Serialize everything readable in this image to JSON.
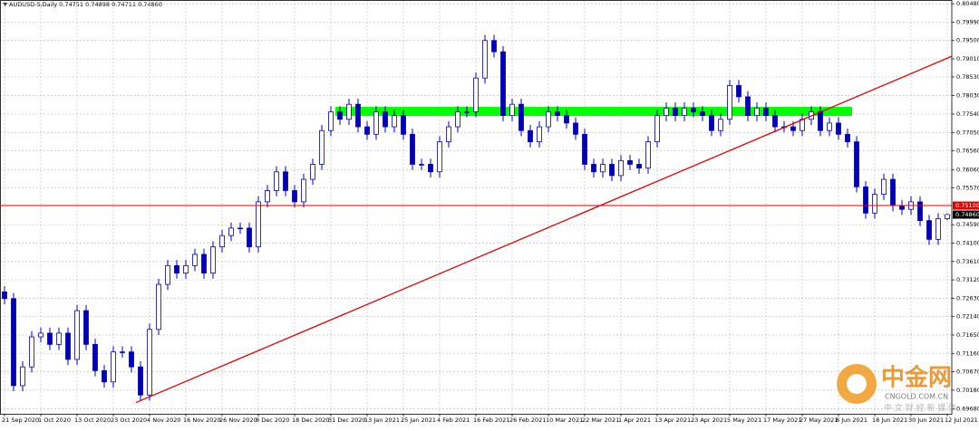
{
  "chart_data": {
    "type": "candlestick",
    "title": "AUDUSD-S,Daily",
    "header_prices": [
      "0.74751",
      "0.74898",
      "0.74711",
      "0.74860"
    ],
    "color": "#0000b4",
    "open": [
      0.728,
      0.7262,
      0.703,
      0.708,
      0.716,
      0.717,
      0.714,
      0.717,
      0.71,
      0.723,
      0.714,
      0.707,
      0.704,
      0.712,
      0.712,
      0.708,
      0.7005,
      0.718,
      0.73,
      0.735,
      0.733,
      0.735,
      0.738,
      0.733,
      0.74,
      0.743,
      0.745,
      0.745,
      0.74,
      0.752,
      0.755,
      0.76,
      0.755,
      0.752,
      0.758,
      0.762,
      0.771,
      0.776,
      0.774,
      0.778,
      0.772,
      0.77,
      0.776,
      0.772,
      0.775,
      0.77,
      0.762,
      0.762,
      0.76,
      0.768,
      0.772,
      0.776,
      0.776,
      0.785,
      0.795,
      0.792,
      0.775,
      0.778,
      0.771,
      0.768,
      0.772,
      0.776,
      0.775,
      0.773,
      0.77,
      0.762,
      0.76,
      0.762,
      0.759,
      0.763,
      0.762,
      0.761,
      0.768,
      0.775,
      0.777,
      0.775,
      0.777,
      0.776,
      0.775,
      0.771,
      0.774,
      0.783,
      0.78,
      0.775,
      0.777,
      0.775,
      0.772,
      0.772,
      0.771,
      0.774,
      0.776,
      0.771,
      0.773,
      0.77,
      0.768,
      0.756,
      0.749,
      0.754,
      0.758,
      0.751,
      0.75,
      0.752,
      0.747,
      0.742,
      0.7475
    ],
    "high": [
      0.7295,
      0.7277,
      0.7095,
      0.7175,
      0.7185,
      0.7185,
      0.7185,
      0.7185,
      0.7245,
      0.7245,
      0.7155,
      0.7085,
      0.7135,
      0.7135,
      0.7135,
      0.7095,
      0.7195,
      0.7315,
      0.7365,
      0.7365,
      0.7365,
      0.7395,
      0.7395,
      0.7415,
      0.7445,
      0.7465,
      0.7465,
      0.7465,
      0.7535,
      0.7565,
      0.7615,
      0.7615,
      0.7565,
      0.7595,
      0.7635,
      0.7725,
      0.7775,
      0.7775,
      0.7795,
      0.7795,
      0.7735,
      0.7775,
      0.7775,
      0.7765,
      0.7765,
      0.7715,
      0.7635,
      0.7635,
      0.7695,
      0.7735,
      0.7775,
      0.7775,
      0.7865,
      0.7965,
      0.7965,
      0.7935,
      0.7795,
      0.7795,
      0.7725,
      0.7735,
      0.7775,
      0.7775,
      0.7765,
      0.7745,
      0.7715,
      0.7635,
      0.7635,
      0.7635,
      0.7645,
      0.7645,
      0.7635,
      0.7695,
      0.7765,
      0.7785,
      0.7785,
      0.7785,
      0.7785,
      0.7775,
      0.7765,
      0.7755,
      0.7845,
      0.7845,
      0.7815,
      0.7785,
      0.7785,
      0.7765,
      0.7735,
      0.7735,
      0.7755,
      0.7775,
      0.7775,
      0.7745,
      0.7745,
      0.7715,
      0.7695,
      0.7575,
      0.7555,
      0.7595,
      0.7595,
      0.7525,
      0.7535,
      0.7535,
      0.7485,
      0.749,
      0.749
    ],
    "low": [
      0.7247,
      0.7015,
      0.7015,
      0.7065,
      0.7145,
      0.7125,
      0.7125,
      0.7085,
      0.7085,
      0.7125,
      0.7055,
      0.7025,
      0.7025,
      0.7105,
      0.7065,
      0.699,
      0.699,
      0.7165,
      0.7285,
      0.7315,
      0.7315,
      0.7335,
      0.7315,
      0.7315,
      0.7385,
      0.7415,
      0.7435,
      0.7385,
      0.7385,
      0.7505,
      0.7535,
      0.7535,
      0.7505,
      0.7505,
      0.7565,
      0.7605,
      0.7695,
      0.7725,
      0.7725,
      0.7705,
      0.7685,
      0.7685,
      0.7705,
      0.7705,
      0.7685,
      0.7605,
      0.7605,
      0.7585,
      0.7585,
      0.7665,
      0.7705,
      0.7745,
      0.7745,
      0.7835,
      0.7905,
      0.7735,
      0.7735,
      0.7695,
      0.7665,
      0.7665,
      0.7705,
      0.7735,
      0.7715,
      0.7685,
      0.7605,
      0.7585,
      0.7585,
      0.7575,
      0.7575,
      0.7605,
      0.7595,
      0.7595,
      0.7665,
      0.7735,
      0.7735,
      0.7735,
      0.7745,
      0.7735,
      0.7695,
      0.7695,
      0.7725,
      0.7785,
      0.7735,
      0.7735,
      0.7735,
      0.7705,
      0.7705,
      0.7695,
      0.7695,
      0.7725,
      0.7695,
      0.7695,
      0.7685,
      0.7665,
      0.7545,
      0.7475,
      0.7475,
      0.7525,
      0.7495,
      0.7485,
      0.7485,
      0.7455,
      0.7405,
      0.7405,
      0.7471
    ],
    "close": [
      0.7262,
      0.703,
      0.708,
      0.716,
      0.717,
      0.714,
      0.717,
      0.71,
      0.723,
      0.714,
      0.707,
      0.704,
      0.712,
      0.712,
      0.708,
      0.7005,
      0.718,
      0.73,
      0.735,
      0.733,
      0.735,
      0.738,
      0.733,
      0.74,
      0.743,
      0.745,
      0.745,
      0.74,
      0.752,
      0.755,
      0.76,
      0.755,
      0.752,
      0.758,
      0.762,
      0.771,
      0.776,
      0.774,
      0.778,
      0.772,
      0.77,
      0.776,
      0.772,
      0.775,
      0.77,
      0.762,
      0.762,
      0.76,
      0.768,
      0.772,
      0.776,
      0.776,
      0.785,
      0.795,
      0.792,
      0.775,
      0.778,
      0.771,
      0.768,
      0.772,
      0.776,
      0.775,
      0.773,
      0.77,
      0.762,
      0.76,
      0.762,
      0.759,
      0.763,
      0.762,
      0.761,
      0.768,
      0.775,
      0.777,
      0.775,
      0.777,
      0.776,
      0.775,
      0.771,
      0.774,
      0.783,
      0.78,
      0.775,
      0.777,
      0.775,
      0.772,
      0.772,
      0.771,
      0.774,
      0.776,
      0.771,
      0.773,
      0.77,
      0.768,
      0.756,
      0.749,
      0.754,
      0.758,
      0.751,
      0.75,
      0.752,
      0.747,
      0.742,
      0.7475,
      0.7486
    ],
    "xlim": [
      -0.5,
      104.5
    ],
    "xticks": [
      {
        "value": 0,
        "label": "21 Sep 2020"
      },
      {
        "value": 4,
        "label": "1 Oct 2020"
      },
      {
        "value": 8,
        "label": "13 Oct 2020"
      },
      {
        "value": 12,
        "label": "23 Oct 2020"
      },
      {
        "value": 16,
        "label": "4 Nov 2020"
      },
      {
        "value": 20,
        "label": "16 Nov 2020"
      },
      {
        "value": 24,
        "label": "26 Nov 2020"
      },
      {
        "value": 28,
        "label": "8 Dec 2020"
      },
      {
        "value": 32,
        "label": "18 Dec 2020"
      },
      {
        "value": 36,
        "label": "31 Dec 2020"
      },
      {
        "value": 40,
        "label": "13 Jan 2021"
      },
      {
        "value": 44,
        "label": "25 Jan 2021"
      },
      {
        "value": 48,
        "label": "4 Feb 2021"
      },
      {
        "value": 52,
        "label": "16 Feb 2021"
      },
      {
        "value": 56,
        "label": "26 Feb 2021"
      },
      {
        "value": 60,
        "label": "10 Mar 2021"
      },
      {
        "value": 64,
        "label": "22 Mar 2021"
      },
      {
        "value": 68,
        "label": "1 Apr 2021"
      },
      {
        "value": 72,
        "label": "13 Apr 2021"
      },
      {
        "value": 76,
        "label": "23 Apr 2021"
      },
      {
        "value": 80,
        "label": "5 May 2021"
      },
      {
        "value": 84,
        "label": "17 May 2021"
      },
      {
        "value": 88,
        "label": "27 May 2021"
      },
      {
        "value": 92,
        "label": "8 Jun 2021"
      },
      {
        "value": 96,
        "label": "18 Jun 2021"
      },
      {
        "value": 100,
        "label": "30 Jun 2021"
      },
      {
        "value": 104,
        "label": "12 Jul 2021"
      }
    ],
    "ylim": [
      0.6955,
      0.8058
    ],
    "yticks": [
      {
        "value": 0.8048,
        "label": "0.80480"
      },
      {
        "value": 0.7999,
        "label": "0.79990"
      },
      {
        "value": 0.795,
        "label": "0.79500"
      },
      {
        "value": 0.7901,
        "label": "0.79010"
      },
      {
        "value": 0.7853,
        "label": "0.78530"
      },
      {
        "value": 0.7803,
        "label": "0.78030"
      },
      {
        "value": 0.7754,
        "label": "0.77540"
      },
      {
        "value": 0.7705,
        "label": "0.77050"
      },
      {
        "value": 0.7656,
        "label": "0.76560"
      },
      {
        "value": 0.7606,
        "label": "0.76060"
      },
      {
        "value": 0.7557,
        "label": "0.75570"
      },
      {
        "value": 0.7459,
        "label": "0.74590"
      },
      {
        "value": 0.741,
        "label": "0.74100"
      },
      {
        "value": 0.7361,
        "label": "0.73610"
      },
      {
        "value": 0.7312,
        "label": "0.73120"
      },
      {
        "value": 0.7263,
        "label": "0.72630"
      },
      {
        "value": 0.7214,
        "label": "0.72140"
      },
      {
        "value": 0.7165,
        "label": "0.71650"
      },
      {
        "value": 0.7116,
        "label": "0.71160"
      },
      {
        "value": 0.7067,
        "label": "0.70670"
      },
      {
        "value": 0.7018,
        "label": "0.70180"
      },
      {
        "value": 0.6968,
        "label": "0.69680"
      }
    ],
    "grid": true,
    "hline": {
      "value": 0.751,
      "label": "0.75100",
      "color": "#e00000"
    },
    "current": {
      "value": 0.7486,
      "label": "0.74860"
    },
    "trendline": {
      "x": [
        14.5,
        104.5
      ],
      "y": [
        0.6985,
        0.7908
      ],
      "color": "#e00000"
    },
    "zone": {
      "x": [
        36.5,
        93.5
      ],
      "y": [
        0.7749,
        0.7773
      ],
      "color": "#00ff00"
    },
    "watermark": {
      "brand": "中金网",
      "site": "CNGOLD.COM.CN",
      "slogan": "中 文 财 经 新 媒 体"
    }
  }
}
